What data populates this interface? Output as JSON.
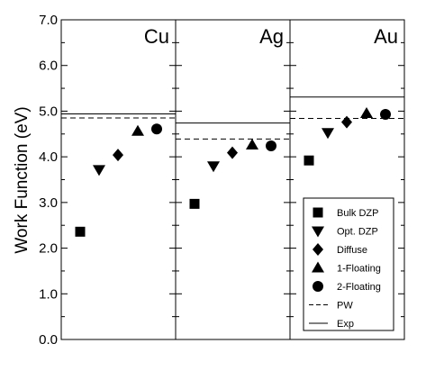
{
  "chart_data": {
    "type": "scatter",
    "ylabel": "Work Function (eV)",
    "ylim": [
      0,
      7
    ],
    "yticks": [
      "0.0",
      "1.0",
      "2.0",
      "3.0",
      "4.0",
      "5.0",
      "6.0",
      "7.0"
    ],
    "panels": [
      {
        "title": "Cu",
        "pw": 4.85,
        "exp": 4.94,
        "points": {
          "Bulk DZP": 2.36,
          "Opt. DZP": 3.72,
          "Diffuse": 4.04,
          "1-Floating": 4.56,
          "2-Floating": 4.61
        }
      },
      {
        "title": "Ag",
        "pw": 4.39,
        "exp": 4.74,
        "points": {
          "Bulk DZP": 2.97,
          "Opt. DZP": 3.8,
          "Diffuse": 4.09,
          "1-Floating": 4.26,
          "2-Floating": 4.24
        }
      },
      {
        "title": "Au",
        "pw": 4.84,
        "exp": 5.31,
        "points": {
          "Bulk DZP": 3.92,
          "Opt. DZP": 4.53,
          "Diffuse": 4.76,
          "1-Floating": 4.95,
          "2-Floating": 4.93
        }
      }
    ],
    "series": [
      {
        "name": "Bulk DZP",
        "marker": "square"
      },
      {
        "name": "Opt. DZP",
        "marker": "triangle-down"
      },
      {
        "name": "Diffuse",
        "marker": "diamond"
      },
      {
        "name": "1-Floating",
        "marker": "triangle-up"
      },
      {
        "name": "2-Floating",
        "marker": "circle"
      }
    ],
    "lines": [
      {
        "name": "PW",
        "style": "dashed"
      },
      {
        "name": "Exp",
        "style": "solid"
      }
    ],
    "legend_position": "bottom-right",
    "grid": false
  }
}
